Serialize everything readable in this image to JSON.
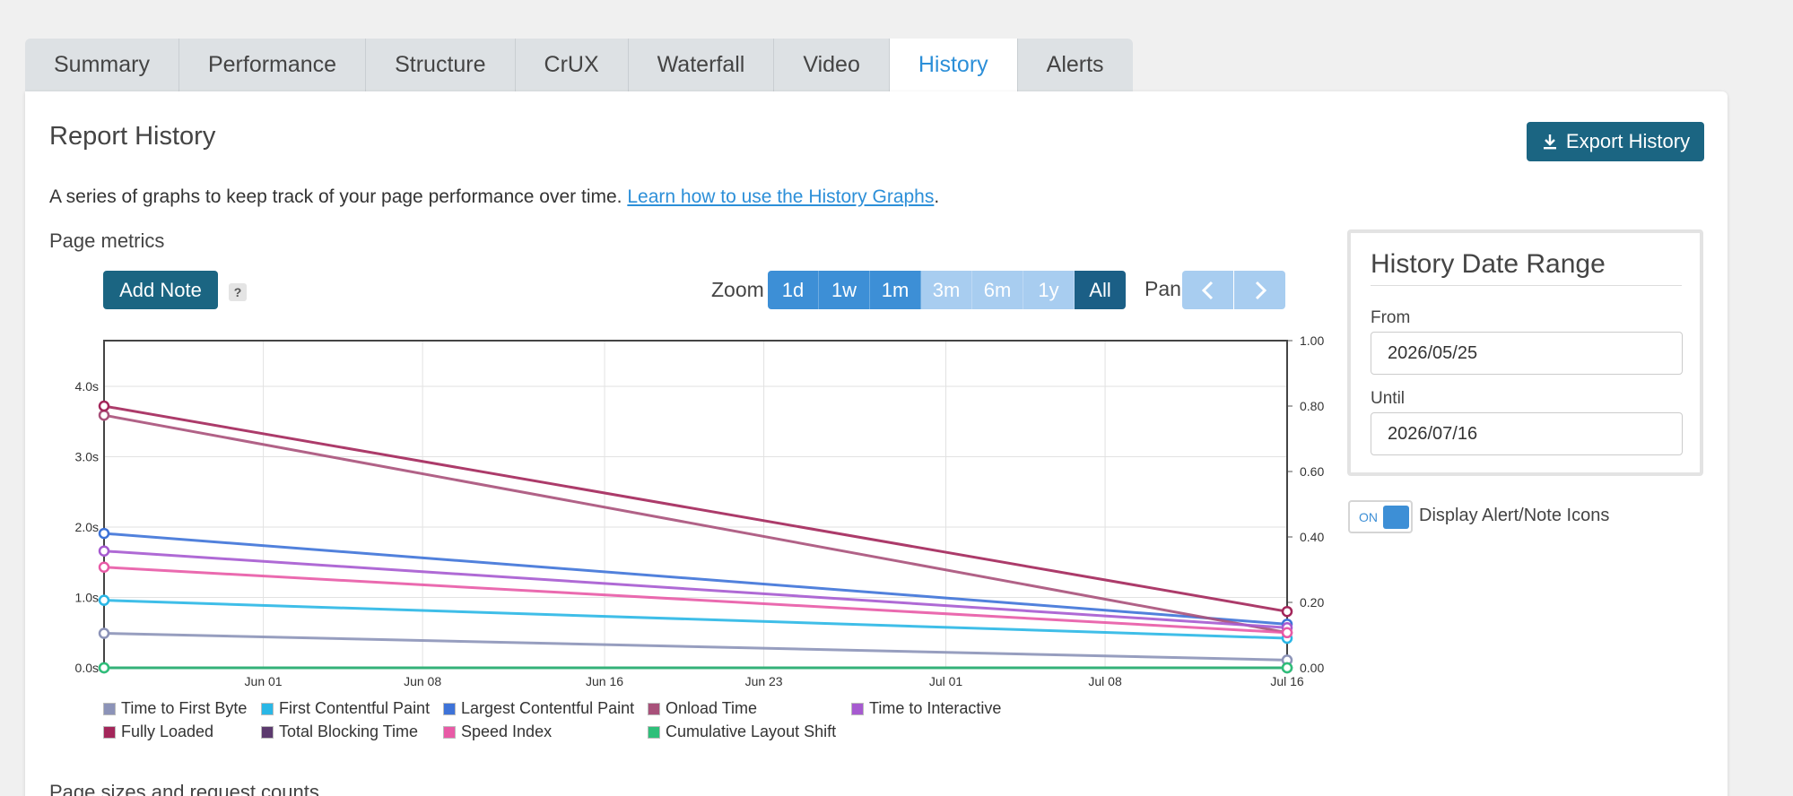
{
  "tabs": [
    {
      "label": "Summary"
    },
    {
      "label": "Performance"
    },
    {
      "label": "Structure"
    },
    {
      "label": "CrUX"
    },
    {
      "label": "Waterfall"
    },
    {
      "label": "Video"
    },
    {
      "label": "History"
    },
    {
      "label": "Alerts"
    }
  ],
  "active_tab": "History",
  "header": {
    "title": "Report History",
    "export_label": "Export History"
  },
  "description": {
    "text": "A series of graphs to keep track of your page performance over time.",
    "link": "Learn how to use the History Graphs",
    "suffix": "."
  },
  "metrics": {
    "title": "Page metrics",
    "add_note_label": "Add Note",
    "help_label": "?",
    "zoom_label": "Zoom",
    "zoom_options": [
      {
        "label": "1d",
        "state": "enabled"
      },
      {
        "label": "1w",
        "state": "enabled"
      },
      {
        "label": "1m",
        "state": "enabled"
      },
      {
        "label": "3m",
        "state": "disabled"
      },
      {
        "label": "6m",
        "state": "disabled"
      },
      {
        "label": "1y",
        "state": "disabled"
      },
      {
        "label": "All",
        "state": "selected"
      }
    ],
    "pan_label": "Pan"
  },
  "chart_data": {
    "type": "line",
    "x": [
      "2026-05-25",
      "2026-07-16"
    ],
    "x_ticks": [
      "Jun 01",
      "Jun 08",
      "Jun 16",
      "Jun 23",
      "Jul 01",
      "Jul 08",
      "Jul 16"
    ],
    "y_left_ticks": [
      "0.0s",
      "1.0s",
      "2.0s",
      "3.0s",
      "4.0s"
    ],
    "y_left_range": [
      0,
      4.65
    ],
    "y_right_ticks": [
      "0.00",
      "0.20",
      "0.40",
      "0.60",
      "0.80",
      "1.00"
    ],
    "y_right_range": [
      0,
      1.0
    ],
    "grid": true,
    "legend_position": "bottom",
    "series": [
      {
        "name": "Time to First Byte",
        "color": "#8c93b8",
        "axis": "left",
        "values": [
          0.49,
          0.11
        ]
      },
      {
        "name": "First Contentful Paint",
        "color": "#2ab7e6",
        "axis": "left",
        "values": [
          0.96,
          0.42
        ]
      },
      {
        "name": "Largest Contentful Paint",
        "color": "#3e73d8",
        "axis": "left",
        "values": [
          1.91,
          0.62
        ]
      },
      {
        "name": "Onload Time",
        "color": "#a8517a",
        "axis": "left",
        "values": [
          3.59,
          0.5
        ]
      },
      {
        "name": "Time to Interactive",
        "color": "#a65ad0",
        "axis": "left",
        "values": [
          1.66,
          0.57
        ]
      },
      {
        "name": "Fully Loaded",
        "color": "#a3265a",
        "axis": "left",
        "values": [
          3.72,
          0.8
        ]
      },
      {
        "name": "Total Blocking Time",
        "color": "#5c3a6e",
        "axis": "left",
        "values": [
          0.0,
          0.0
        ]
      },
      {
        "name": "Speed Index",
        "color": "#e85aa6",
        "axis": "left",
        "values": [
          1.43,
          0.5
        ]
      },
      {
        "name": "Cumulative Layout Shift",
        "color": "#2fbf7a",
        "axis": "right",
        "values": [
          0.0,
          0.0
        ]
      }
    ]
  },
  "date_range": {
    "title": "History Date Range",
    "from_label": "From",
    "from_value": "2026/05/25",
    "until_label": "Until",
    "until_value": "2026/07/16"
  },
  "toggle": {
    "state_label": "ON",
    "label": "Display Alert/Note Icons"
  },
  "next_section_title": "Page sizes and request counts"
}
